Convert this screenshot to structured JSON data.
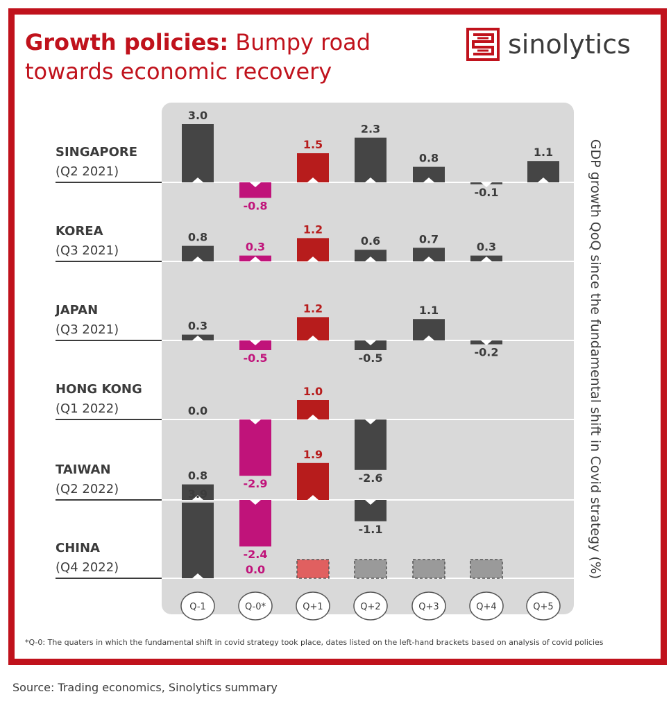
{
  "header": {
    "title_bold": "Growth policies:",
    "title_rest": "Bumpy road towards economic recovery",
    "logo_text": "sinolytics"
  },
  "colors": {
    "brand_red": "#c0121c",
    "bar_dark": "#454545",
    "bar_red": "#b71c1c",
    "bar_magenta": "#c0137a",
    "forecast_red": "#e06060",
    "forecast_grey": "#9a9a9a",
    "panel_bg": "#d9d9d9"
  },
  "chart_data": {
    "type": "bar",
    "ylabel": "GDP growth QoQ since the fundamental shift in Covid strategy (%)",
    "categories": [
      "Q-1",
      "Q-0*",
      "Q+1",
      "Q+2",
      "Q+3",
      "Q+4",
      "Q+5"
    ],
    "series": [
      {
        "name": "SINGAPORE",
        "period": "(Q2 2021)",
        "values": [
          3.0,
          -0.8,
          1.5,
          2.3,
          0.8,
          -0.1,
          1.1
        ]
      },
      {
        "name": "KOREA",
        "period": "(Q3 2021)",
        "values": [
          0.8,
          0.3,
          1.2,
          0.6,
          0.7,
          0.3,
          null
        ]
      },
      {
        "name": "JAPAN",
        "period": "(Q3 2021)",
        "values": [
          0.3,
          -0.5,
          1.2,
          -0.5,
          1.1,
          -0.2,
          null
        ]
      },
      {
        "name": "HONG KONG",
        "period": "(Q1 2022)",
        "values": [
          0.0,
          -2.9,
          1.0,
          -2.6,
          null,
          null,
          null
        ]
      },
      {
        "name": "TAIWAN",
        "period": "(Q2 2022)",
        "values": [
          0.8,
          -2.4,
          1.9,
          -1.1,
          null,
          null,
          null
        ]
      },
      {
        "name": "CHINA",
        "period": "(Q4 2022)",
        "values": [
          3.9,
          0.0,
          null,
          null,
          null,
          null,
          null
        ],
        "forecast": [
          false,
          false,
          true,
          true,
          true,
          true,
          false
        ]
      }
    ]
  },
  "footnote": "*Q-0: The quaters in which the fundamental shift in covid strategy took place, dates listed on the left-hand brackets based on analysis of covid policies",
  "source": "Source: Trading economics, Sinolytics summary"
}
